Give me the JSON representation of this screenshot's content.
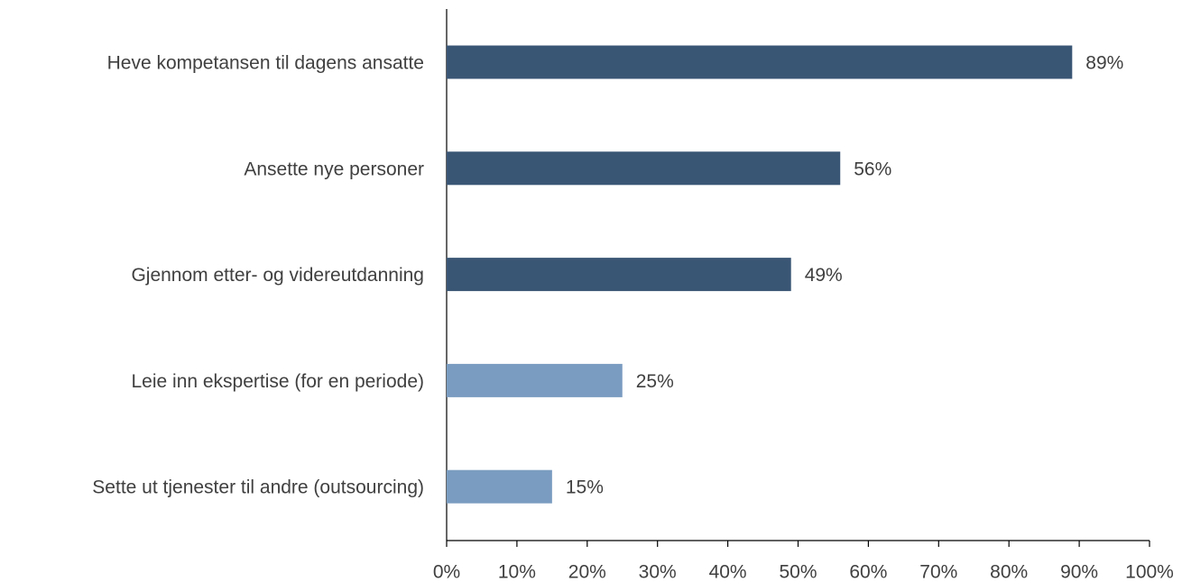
{
  "chart_data": {
    "type": "bar",
    "orientation": "horizontal",
    "categories": [
      "Heve kompetansen til dagens ansatte",
      "Ansette nye personer",
      "Gjennom etter- og videreutdanning",
      "Leie inn ekspertise (for en periode)",
      "Sette ut tjenester til andre (outsourcing)"
    ],
    "values": [
      89,
      56,
      49,
      25,
      15
    ],
    "value_labels": [
      "89%",
      "56%",
      "49%",
      "25%",
      "15%"
    ],
    "colors": [
      "#3a5675",
      "#3a5675",
      "#3a5675",
      "#7a9cc0",
      "#7a9cc0"
    ],
    "xlim": [
      0,
      100
    ],
    "xticks": [
      {
        "value": 0,
        "label": "0%"
      },
      {
        "value": 10,
        "label": "10%"
      },
      {
        "value": 20,
        "label": "20%"
      },
      {
        "value": 30,
        "label": "30%"
      },
      {
        "value": 40,
        "label": "40%"
      },
      {
        "value": 50,
        "label": "50%"
      },
      {
        "value": 60,
        "label": "60%"
      },
      {
        "value": 70,
        "label": "70%"
      },
      {
        "value": 80,
        "label": "80%"
      },
      {
        "value": 90,
        "label": "90%"
      },
      {
        "value": 100,
        "label": "100%"
      }
    ],
    "grid": false
  }
}
